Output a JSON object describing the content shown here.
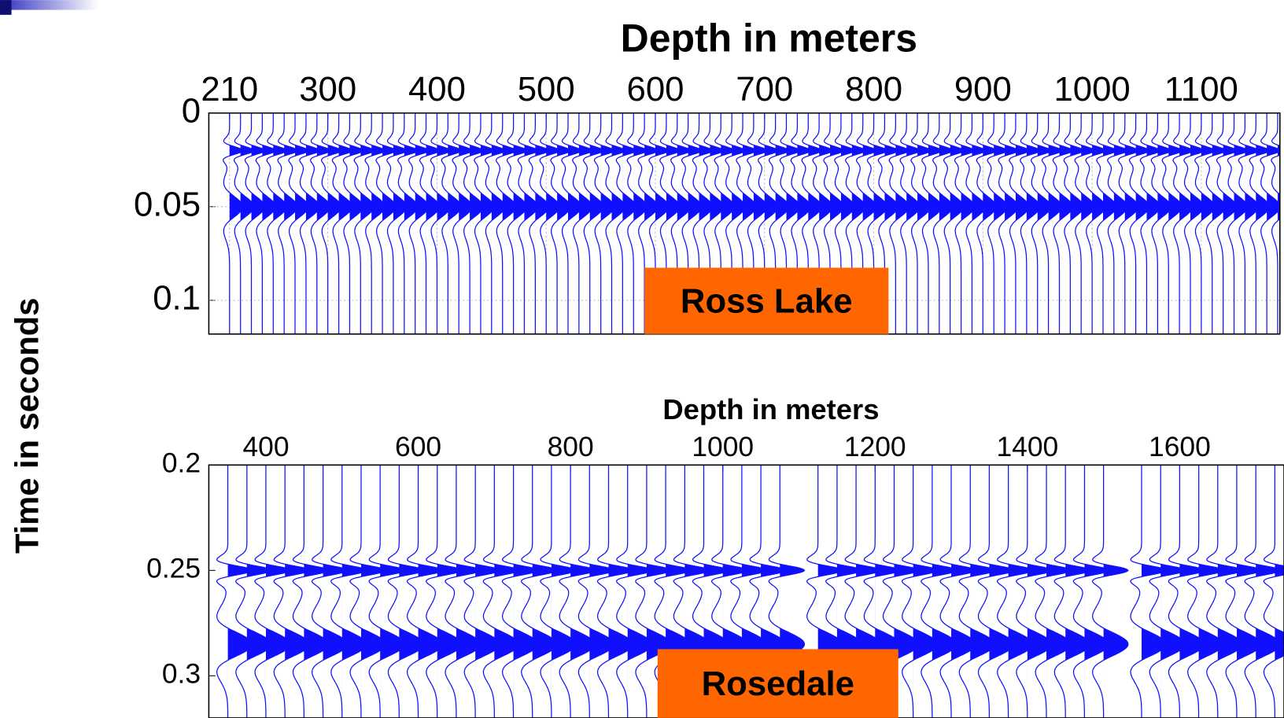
{
  "chart_data": [
    {
      "type": "wiggle",
      "title": "Depth in meters",
      "ylabel": "Time in seconds",
      "annotation": "Ross Lake",
      "color": "#1010ff",
      "grid": true,
      "xlim": [
        191,
        1172
      ],
      "ylim": [
        0,
        0.118
      ],
      "xticks": [
        210,
        300,
        400,
        500,
        600,
        700,
        800,
        900,
        1000,
        1100
      ],
      "yticks": [
        0,
        0.05,
        0.1
      ],
      "events": [
        0.02,
        0.05
      ],
      "x": [
        210,
        220,
        230,
        240,
        250,
        260,
        270,
        280,
        290,
        300,
        310,
        320,
        330,
        340,
        350,
        360,
        370,
        380,
        390,
        400,
        410,
        420,
        430,
        440,
        450,
        460,
        470,
        480,
        490,
        500,
        510,
        520,
        530,
        540,
        550,
        560,
        570,
        580,
        590,
        600,
        610,
        620,
        630,
        640,
        650,
        660,
        670,
        680,
        690,
        700,
        710,
        720,
        730,
        740,
        750,
        760,
        770,
        780,
        790,
        800,
        810,
        820,
        830,
        840,
        850,
        860,
        870,
        880,
        890,
        900,
        910,
        920,
        930,
        940,
        950,
        960,
        970,
        980,
        990,
        1000,
        1010,
        1020,
        1030,
        1040,
        1050,
        1060,
        1070,
        1080,
        1090,
        1100,
        1110,
        1120,
        1130,
        1140,
        1150,
        1160,
        1170
      ]
    },
    {
      "type": "wiggle",
      "title": "Depth in meters",
      "annotation": "Rosedale",
      "color": "#1010ff",
      "grid": false,
      "xlim": [
        325,
        1737
      ],
      "ylim": [
        0.2,
        0.32
      ],
      "xticks": [
        400,
        600,
        800,
        1000,
        1200,
        1400,
        1600
      ],
      "yticks": [
        0.2,
        0.25,
        0.3
      ],
      "events": [
        0.25,
        0.285
      ],
      "x": [
        350,
        375,
        400,
        425,
        450,
        475,
        500,
        525,
        550,
        575,
        600,
        625,
        650,
        675,
        700,
        725,
        750,
        775,
        800,
        825,
        850,
        875,
        900,
        925,
        950,
        975,
        1000,
        1025,
        1050,
        1075,
        1125,
        1150,
        1175,
        1200,
        1225,
        1250,
        1275,
        1300,
        1325,
        1350,
        1375,
        1400,
        1425,
        1450,
        1475,
        1500,
        1550,
        1575,
        1600,
        1625,
        1650,
        1675,
        1700,
        1725
      ]
    }
  ]
}
